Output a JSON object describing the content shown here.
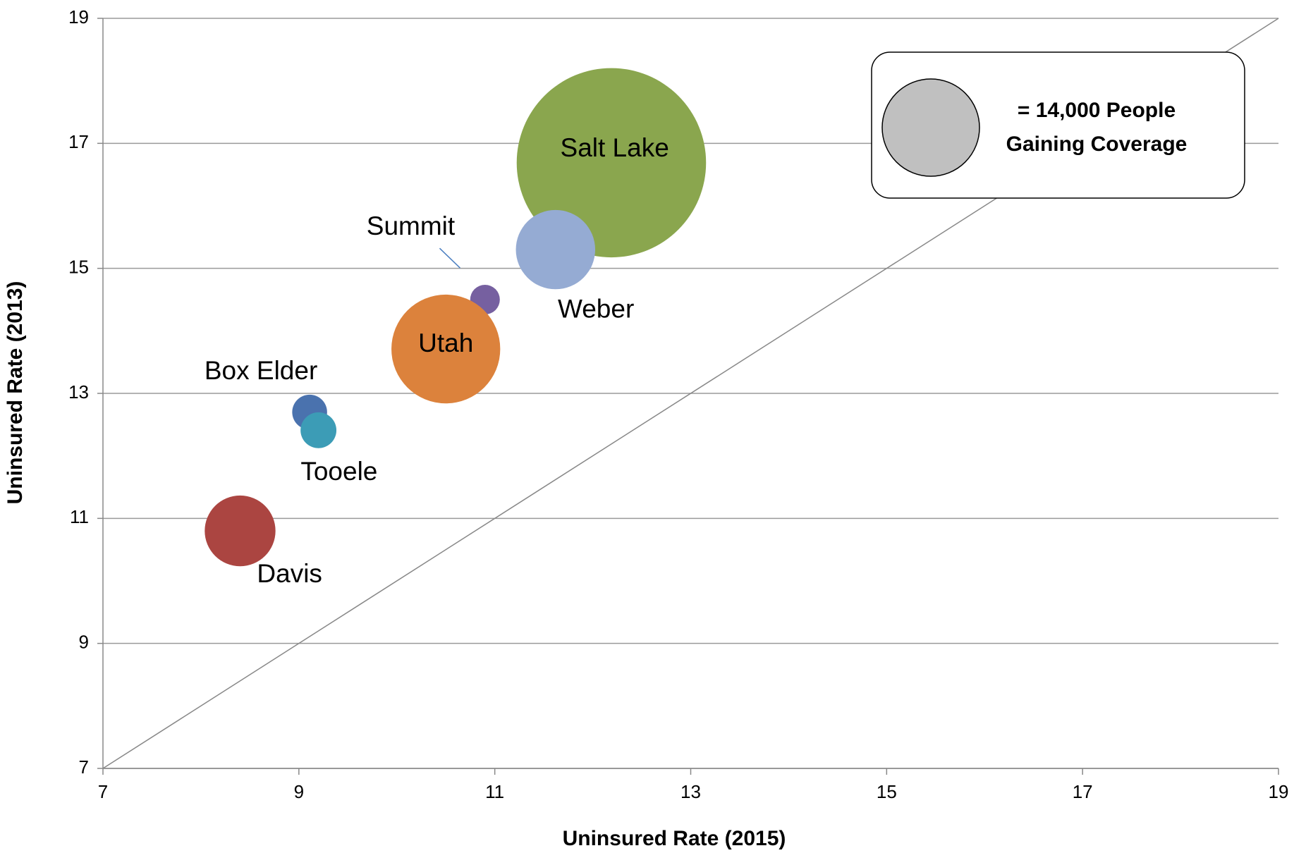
{
  "chart_data": {
    "type": "bubble",
    "x_label": "Uninsured Rate (2015)",
    "y_label": "Uninsured Rate (2013)",
    "xlim": [
      7,
      19
    ],
    "xticks": [
      7,
      9,
      11,
      13,
      15,
      17,
      19
    ],
    "ylim": [
      7,
      19
    ],
    "yticks": [
      7,
      9,
      11,
      13,
      15,
      17,
      19
    ],
    "grid": true,
    "diagonal": true,
    "series": [
      {
        "name": "Salt Lake",
        "color": "#8aa64e",
        "x": 12.19,
        "y": 16.69,
        "size": 53000
      },
      {
        "name": "Weber",
        "color": "#95abd3",
        "x": 11.62,
        "y": 15.3,
        "size": 9300
      },
      {
        "name": "Summit",
        "color": "#7660a0",
        "x": 10.9,
        "y": 14.5,
        "size": 1300
      },
      {
        "name": "Utah",
        "color": "#dc823c",
        "x": 10.5,
        "y": 13.71,
        "size": 17500
      },
      {
        "name": "Box Elder",
        "color": "#4a72ae",
        "x": 9.11,
        "y": 12.7,
        "size": 1800
      },
      {
        "name": "Tooele",
        "color": "#3c9cb6",
        "x": 9.2,
        "y": 12.41,
        "size": 1900
      },
      {
        "name": "Davis",
        "color": "#ab4541",
        "x": 8.4,
        "y": 10.8,
        "size": 7400
      }
    ],
    "legend": {
      "size": 14000,
      "color": "#c0c0c0",
      "label_lines": [
        "= 14,000 People",
        "Gaining Coverage"
      ]
    }
  }
}
